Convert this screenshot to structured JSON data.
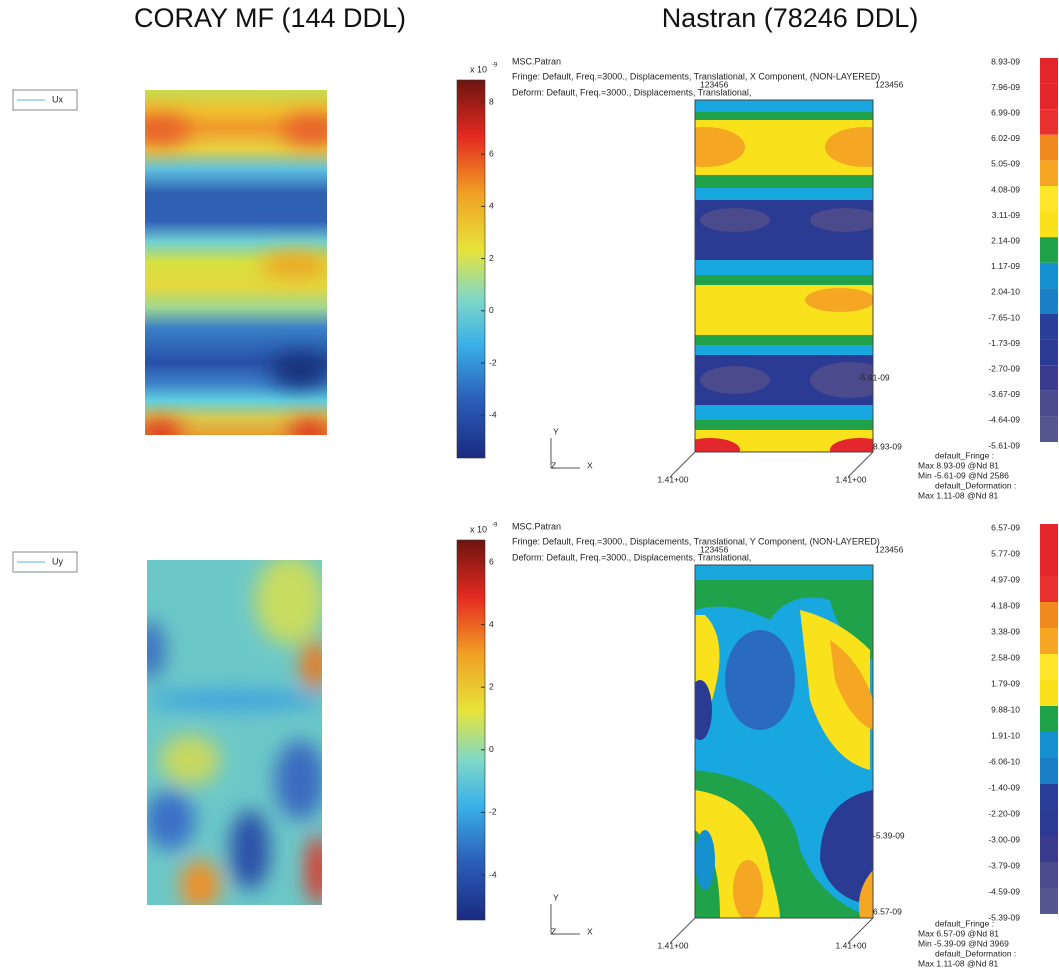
{
  "titles": {
    "left": "CORAY MF (144 DDL)",
    "right": "Nastran (78246 DDL)"
  },
  "panels": [
    {
      "legend": "Ux",
      "colorbar": {
        "multiplier": "x 10",
        "exponent": "-9",
        "ticks": [
          "8",
          "6",
          "4",
          "2",
          "0",
          "-2",
          "-4"
        ]
      },
      "patran": {
        "app": "MSC.Patran",
        "fringe": "Fringe: Default, Freq.=3000., Displacements, Translational, X Component, (NON-LAYERED)",
        "deform": "Deform: Default, Freq.=3000., Displacements, Translational,",
        "node_labels": [
          "123456",
          "123456"
        ],
        "scale_labels": [
          "1.41+00",
          "1.41+00"
        ],
        "min_label": "-5.61-09",
        "max_label": "8.93-09",
        "axes": [
          "Y",
          "Z",
          "X"
        ],
        "legend_values": [
          "8.93-09",
          "7.96-09",
          "6.99-09",
          "6.02-09",
          "5.05-09",
          "4.08-09",
          "3.11-09",
          "2.14-09",
          "1.17-09",
          "2.04-10",
          "-7.65-10",
          "-1.73-09",
          "-2.70-09",
          "-3.67-09",
          "-4.64-09",
          "-5.61-09"
        ],
        "info": [
          "default_Fringe :",
          "Max 8.93-09 @Nd 81",
          "Min -5.61-09 @Nd 2586",
          "default_Deformation :",
          "Max 1.11-08 @Nd 81"
        ]
      }
    },
    {
      "legend": "Uy",
      "colorbar": {
        "multiplier": "x 10",
        "exponent": "-9",
        "ticks": [
          "6",
          "4",
          "2",
          "0",
          "-2",
          "-4"
        ]
      },
      "patran": {
        "app": "MSC.Patran",
        "fringe": "Fringe: Default, Freq.=3000., Displacements, Translational, Y Component, (NON-LAYERED)",
        "deform": "Deform: Default, Freq.=3000., Displacements, Translational,",
        "node_labels": [
          "123456",
          "123456"
        ],
        "scale_labels": [
          "1.41+00",
          "1.41+00"
        ],
        "min_label": "-5.39-09",
        "max_label": "6.57-09",
        "axes": [
          "Y",
          "Z",
          "X"
        ],
        "legend_values": [
          "6.57-09",
          "5.77-09",
          "4.97-09",
          "4.18-09",
          "3.38-09",
          "2.58-09",
          "1.79-09",
          "9.88-10",
          "1.91-10",
          "-6.06-10",
          "-1.40-09",
          "-2.20-09",
          "-3.00-09",
          "-3.79-09",
          "-4.59-09",
          "-5.39-09"
        ],
        "info": [
          "default_Fringe :",
          "Max 6.57-09 @Nd 81",
          "Min -5.39-09 @Nd 3969",
          "default_Deformation :",
          "Max 1.11-08 @Nd 81"
        ]
      }
    }
  ]
}
